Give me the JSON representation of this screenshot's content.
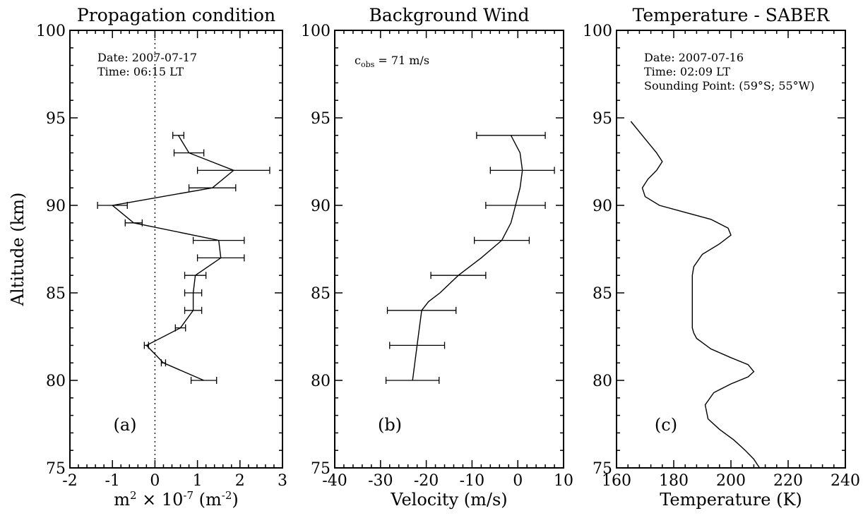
{
  "figure": {
    "ylabel": "Altitude (km)"
  },
  "chart_data": [
    {
      "type": "line",
      "title": "Propagation condition",
      "xlabel": "m² × 10⁻⁷ (m⁻²)",
      "ylabel": "Altitude (km)",
      "xlim": [
        -2,
        3
      ],
      "ylim": [
        75,
        100
      ],
      "x_ticks": [
        -2,
        -1,
        0,
        1,
        2,
        3
      ],
      "y_ticks": [
        75,
        80,
        85,
        90,
        95,
        100
      ],
      "annotations": [
        "Date: 2007-07-17",
        "Time: 06:15 LT"
      ],
      "panel_label": "(a)",
      "reference_line": {
        "x": 0,
        "style": "dotted"
      },
      "series": [
        {
          "x": [
            0.55,
            0.8,
            1.85,
            1.35,
            -1.0,
            -0.5,
            1.5,
            1.55,
            0.95,
            0.9,
            0.9,
            0.6,
            -0.2,
            0.2,
            1.15
          ],
          "y": [
            94,
            93,
            92,
            91,
            90,
            89,
            88,
            87,
            86,
            85,
            84,
            83,
            82,
            81,
            80
          ],
          "xerr": [
            0.13,
            0.35,
            0.85,
            0.55,
            0.35,
            0.2,
            0.6,
            0.55,
            0.25,
            0.2,
            0.2,
            0.12,
            0.05,
            0.05,
            0.3
          ]
        }
      ]
    },
    {
      "type": "line",
      "title": "Background Wind",
      "xlabel": "Velocity (m/s)",
      "ylabel": "Altitude (km)",
      "xlim": [
        -40,
        10
      ],
      "ylim": [
        75,
        100
      ],
      "x_ticks": [
        -40,
        -30,
        -20,
        -10,
        0,
        10
      ],
      "y_ticks": [
        75,
        80,
        85,
        90,
        95,
        100
      ],
      "annotations": [
        "c",
        "obs",
        " = 71 m/s"
      ],
      "panel_label": "(b)",
      "series": [
        {
          "x": [
            -1.5,
            1.0,
            -0.5,
            -3.5,
            -13.0,
            -21.0,
            -22.0,
            -23.0
          ],
          "y": [
            94,
            92,
            90,
            88,
            86,
            84,
            82,
            80
          ],
          "xerr": [
            7.5,
            7.0,
            6.5,
            6.0,
            6.0,
            7.5,
            6.0,
            5.8
          ],
          "curve_x": [
            -1.5,
            0.5,
            1.0,
            0.5,
            -0.5,
            -1.5,
            -3.5,
            -8.0,
            -13.0,
            -17.0,
            -19.5,
            -21.0,
            -22.0,
            -22.5,
            -23.0
          ],
          "curve_y": [
            94,
            93,
            92,
            91,
            90,
            89,
            88,
            87,
            86,
            85,
            84.5,
            84,
            82,
            81,
            80
          ]
        }
      ]
    },
    {
      "type": "line",
      "title": "Temperature - SABER",
      "xlabel": "Temperature (K)",
      "ylabel": "Altitude (km)",
      "xlim": [
        160,
        240
      ],
      "ylim": [
        75,
        100
      ],
      "x_ticks": [
        160,
        180,
        200,
        220,
        240
      ],
      "y_ticks": [
        75,
        80,
        85,
        90,
        95,
        100
      ],
      "annotations": [
        "Date: 2007-07-16",
        "Time: 02:09 LT",
        "Sounding Point: (59°S; 55°W)"
      ],
      "panel_label": "(c)",
      "series": [
        {
          "x": [
            165,
            170,
            174,
            176,
            174,
            171,
            169,
            170,
            175,
            184,
            193,
            199,
            200,
            196,
            190,
            187,
            186.5,
            186.5,
            186.5,
            186.5,
            186.5,
            187,
            188,
            193,
            200,
            206,
            208,
            206,
            200,
            194,
            191,
            192,
            196,
            201,
            205,
            208,
            210
          ],
          "y": [
            94.8,
            93.8,
            93.0,
            92.5,
            92.0,
            91.5,
            91.0,
            90.5,
            90.0,
            89.6,
            89.2,
            88.7,
            88.3,
            87.8,
            87.2,
            86.5,
            86.0,
            85.0,
            84.0,
            83.5,
            83.0,
            82.7,
            82.4,
            81.8,
            81.3,
            80.9,
            80.5,
            80.2,
            79.8,
            79.3,
            78.6,
            77.8,
            77.2,
            76.6,
            76.0,
            75.5,
            75.0
          ]
        }
      ]
    }
  ]
}
